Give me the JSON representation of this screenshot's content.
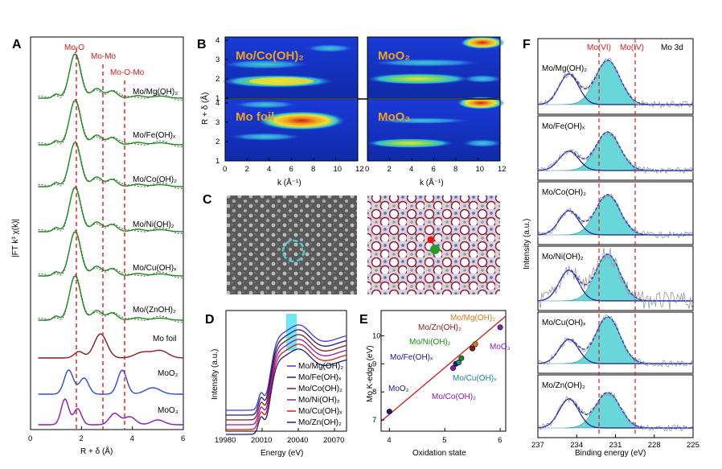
{
  "figure": {
    "panels": {
      "A": {
        "label": "A",
        "ylabel": "|FT k³ χ(k)|",
        "xlabel": "R + δ (Å)",
        "xticks": [
          "0",
          "2",
          "4",
          "6"
        ],
        "peaks": [
          "Mo-O",
          "Mo-Mo",
          "Mo-O-Mo"
        ],
        "samples": [
          {
            "name": "Mo/Mg(OH)₂",
            "color": "#1a8a1a"
          },
          {
            "name": "Mo/Fe(OH)ₓ",
            "color": "#1a8a1a"
          },
          {
            "name": "Mo/Co(OH)₂",
            "color": "#1a8a1a"
          },
          {
            "name": "Mo/Ni(OH)₂",
            "color": "#1a8a1a"
          },
          {
            "name": "Mo/Cu(OH)ₓ",
            "color": "#1a8a1a"
          },
          {
            "name": "Mo/(ZnOH)₂",
            "color": "#1a8a1a"
          },
          {
            "name": "Mo foil",
            "color": "#8b1a1a"
          },
          {
            "name": "MoO₂",
            "color": "#2a4bd8"
          },
          {
            "name": "MoO₃",
            "color": "#8a1ab8"
          }
        ]
      },
      "B": {
        "label": "B",
        "maps": [
          "Mo/Co(OH)₂",
          "MoO₂",
          "Mo foil",
          "MoO₃"
        ],
        "ylabel": "R + δ (Å)",
        "xlabel": "k (Å⁻¹)",
        "yticks": [
          "1",
          "2",
          "3",
          "4"
        ],
        "xticks": [
          "0",
          "2",
          "4",
          "6",
          "8",
          "10",
          "12"
        ]
      },
      "C": {
        "label": "C"
      },
      "D": {
        "label": "D",
        "ylabel": "Intensity (a.u.)",
        "xlabel": "Energy (eV)",
        "xticks": [
          "19980",
          "20010",
          "20040",
          "20070"
        ],
        "legend": [
          {
            "name": "Mo/Mg(OH)₂",
            "color": "#3b3bdc"
          },
          {
            "name": "Mo/Fe(OH)ₓ",
            "color": "#1a1a8a"
          },
          {
            "name": "Mo/Co(OH)₂",
            "color": "#8b1a1a"
          },
          {
            "name": "Mo/Ni(OH)₂",
            "color": "#8a1ab8"
          },
          {
            "name": "Mo/Cu(OH)ₓ",
            "color": "#d81a1a"
          },
          {
            "name": "Mo/Zn(OH)₂",
            "color": "#1a1a8a"
          }
        ]
      },
      "E": {
        "label": "E",
        "ylabel": "Mo K-edge (eV)",
        "xlabel": "Oxidation state",
        "xticks": [
          "4",
          "5",
          "6"
        ],
        "yticks": [
          "7",
          "8",
          "9",
          "10"
        ],
        "chart_data": {
          "type": "scatter",
          "xlabel": "Oxidation state",
          "ylabel": "Mo K-edge (eV)",
          "xlim": [
            3.85,
            6.1
          ],
          "ylim": [
            6.6,
            10.9
          ],
          "points": [
            {
              "name": "MoO₂",
              "x": 4.0,
              "y": 7.3,
              "color": "#1a1a8a"
            },
            {
              "name": "MoO₃",
              "x": 6.0,
              "y": 10.3,
              "color": "#8a1ab8"
            },
            {
              "name": "Mo/Mg(OH)₂",
              "x": 5.55,
              "y": 9.7,
              "color": "#e07a1a"
            },
            {
              "name": "Mo/Zn(OH)₂",
              "x": 5.5,
              "y": 9.55,
              "color": "#8b1a1a"
            },
            {
              "name": "Mo/Ni(OH)₂",
              "x": 5.3,
              "y": 9.2,
              "color": "#1a8a1a"
            },
            {
              "name": "Mo/Fe(OH)ₓ",
              "x": 5.2,
              "y": 9.0,
              "color": "#1a1a8a"
            },
            {
              "name": "Mo/Cu(OH)ₓ",
              "x": 5.25,
              "y": 9.05,
              "color": "#1a8a8a"
            },
            {
              "name": "Mo/Co(OH)₂",
              "x": 5.15,
              "y": 8.85,
              "color": "#8a1ab8"
            }
          ],
          "fit_line": {
            "x": [
              3.85,
              6.1
            ],
            "y": [
              6.95,
              10.7
            ],
            "color": "#d81a1a"
          }
        }
      },
      "F": {
        "label": "F",
        "ylabel": "Intensity (a.u.)",
        "xlabel": "Binding energy (eV)",
        "xticks": [
          "237",
          "234",
          "231",
          "228",
          "225"
        ],
        "title_note": "Mo 3d",
        "markers": [
          "Mo(VI)",
          "Mo(IV)"
        ],
        "samples": [
          "Mo/Mg(OH)₂",
          "Mo/Fe(OH)ₓ",
          "Mo/Co(OH)₂",
          "Mo/Ni(OH)₂",
          "Mo/Cu(OH)ₓ",
          "Mo/Zn(OH)₂"
        ]
      }
    }
  }
}
